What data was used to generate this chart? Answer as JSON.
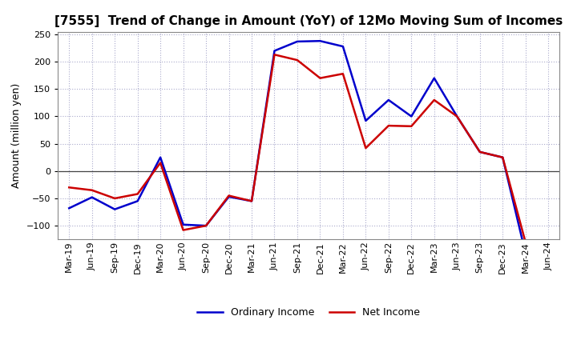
{
  "title": "[7555]  Trend of Change in Amount (YoY) of 12Mo Moving Sum of Incomes",
  "ylabel": "Amount (million yen)",
  "labels": [
    "Mar-19",
    "Jun-19",
    "Sep-19",
    "Dec-19",
    "Mar-20",
    "Jun-20",
    "Sep-20",
    "Dec-20",
    "Mar-21",
    "Jun-21",
    "Sep-21",
    "Dec-21",
    "Mar-22",
    "Jun-22",
    "Sep-22",
    "Dec-22",
    "Mar-23",
    "Jun-23",
    "Sep-23",
    "Dec-23",
    "Mar-24",
    "Jun-24"
  ],
  "ordinary_income": [
    -68,
    -48,
    -70,
    -55,
    25,
    -98,
    -100,
    -47,
    -55,
    220,
    237,
    238,
    228,
    92,
    130,
    100,
    170,
    100,
    35,
    25,
    -150,
    null
  ],
  "net_income": [
    -30,
    -35,
    -50,
    -42,
    15,
    -108,
    -100,
    -45,
    -55,
    213,
    203,
    170,
    178,
    42,
    83,
    82,
    130,
    100,
    35,
    25,
    -130,
    null
  ],
  "ordinary_color": "#0000cc",
  "net_color": "#cc0000",
  "ylim": [
    -125,
    255
  ],
  "yticks": [
    -100,
    -50,
    0,
    50,
    100,
    150,
    200,
    250
  ],
  "bg_color": "#ffffff",
  "plot_bg_color": "#ffffff",
  "grid_color": "#aaaacc",
  "line_width": 1.8,
  "title_fontsize": 11,
  "ylabel_fontsize": 9,
  "tick_fontsize": 8,
  "legend_fontsize": 9
}
